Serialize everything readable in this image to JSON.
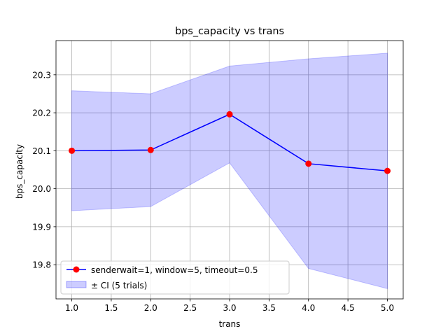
{
  "chart_data": {
    "type": "line",
    "title": "bps_capacity vs trans",
    "xlabel": "trans",
    "ylabel": "bps_capacity",
    "xlim": [
      0.8,
      5.2
    ],
    "ylim": [
      19.71,
      20.39
    ],
    "xticks": [
      "1.0",
      "1.5",
      "2.0",
      "2.5",
      "3.0",
      "3.5",
      "4.0",
      "4.5",
      "5.0"
    ],
    "yticks": [
      "19.8",
      "19.9",
      "20.0",
      "20.1",
      "20.2",
      "20.3"
    ],
    "grid": true,
    "legend_position": "lower-left",
    "x": [
      1.0,
      2.0,
      3.0,
      4.0,
      5.0
    ],
    "series": [
      {
        "name": "senderwait=1, window=5, timeout=0.5",
        "values": [
          20.1,
          20.102,
          20.196,
          20.066,
          20.047
        ],
        "line_color": "#0000ff",
        "marker_color": "#ff0000"
      }
    ],
    "band": {
      "name": "± CI (5 trials)",
      "lower": [
        19.942,
        19.953,
        20.068,
        19.79,
        19.737
      ],
      "upper": [
        20.258,
        20.25,
        20.323,
        20.342,
        20.357
      ],
      "color": "#0000ff"
    }
  }
}
